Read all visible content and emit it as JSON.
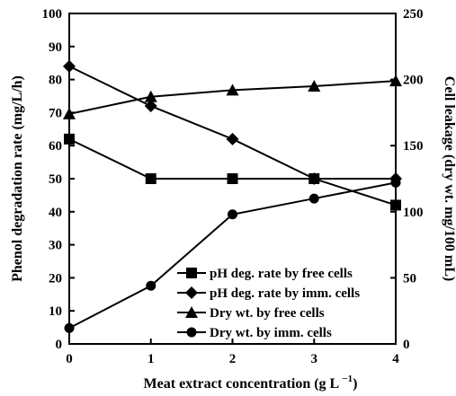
{
  "chart_data": {
    "type": "line",
    "title": "",
    "xlabel": "Meat extract concentration (g L",
    "xlabel_superscript": "−1",
    "xlabel_suffix": ")",
    "ylabel_left": "Phenol degradation rate (mg/L/h)",
    "ylabel_right": "Cell leakage (dry wt. mg/100 mL)",
    "x": [
      0,
      1,
      2,
      3,
      4
    ],
    "x_ticks": [
      "0",
      "1",
      "2",
      "3",
      "4"
    ],
    "xlim": [
      0,
      4
    ],
    "ylim_left": [
      0,
      100
    ],
    "ylim_right": [
      0,
      250
    ],
    "y_ticks_left": [
      "0",
      "10",
      "20",
      "30",
      "40",
      "50",
      "60",
      "70",
      "80",
      "90",
      "100"
    ],
    "y_ticks_right": [
      "0",
      "50",
      "100",
      "150",
      "200",
      "250"
    ],
    "grid": false,
    "legend_position": "bottom-right",
    "series": [
      {
        "name": "pH deg. rate by free cells",
        "axis": "left",
        "marker": "square",
        "values": [
          62,
          50,
          50,
          50,
          42
        ]
      },
      {
        "name": "pH deg. rate by imm. cells",
        "axis": "left",
        "marker": "diamond",
        "values": [
          84,
          72,
          62,
          50,
          50
        ]
      },
      {
        "name": "Dry wt. by free cells",
        "axis": "right",
        "marker": "triangle",
        "values": [
          174,
          187,
          192,
          195,
          199
        ]
      },
      {
        "name": "Dry wt. by imm. cells",
        "axis": "right",
        "marker": "circle",
        "values": [
          12,
          44,
          98,
          110,
          122
        ]
      }
    ]
  }
}
